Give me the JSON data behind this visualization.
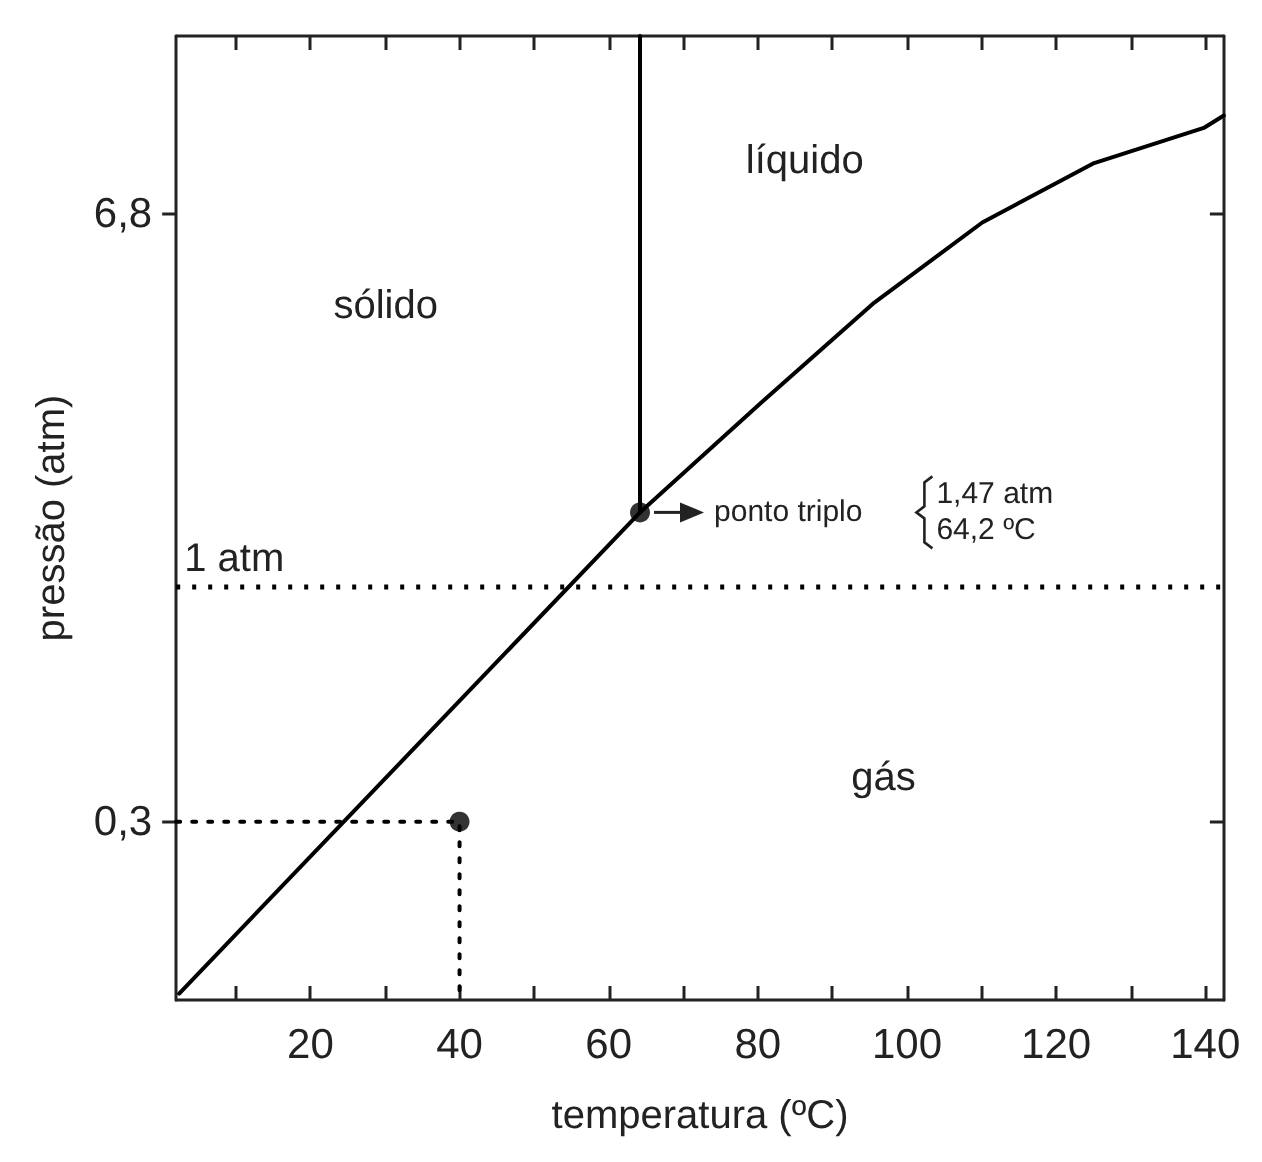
{
  "chart_data": {
    "type": "line",
    "xlabel": "temperatura (ºC)",
    "ylabel": "pressão (atm)",
    "log": "y",
    "xlim": [
      2,
      142.5
    ],
    "ylim": [
      0.12,
      17
    ],
    "xticks": [
      {
        "value": 10,
        "label": null
      },
      20,
      {
        "value": 30,
        "label": null
      },
      40,
      {
        "value": 50,
        "label": null
      },
      60,
      {
        "value": 70,
        "label": null
      },
      80,
      {
        "value": 90,
        "label": null
      },
      100,
      {
        "value": 110,
        "label": null
      },
      120,
      {
        "value": 130,
        "label": null
      },
      140
    ],
    "yticks": [
      {
        "value": 0.3,
        "label": "0,3"
      },
      {
        "value": 6.8,
        "label": "6,8"
      }
    ],
    "grid": false,
    "ref_lines": [
      {
        "axis": "y",
        "value": 1,
        "label": "1 atm",
        "line_style": "dotted",
        "color": "#000000"
      }
    ],
    "series": [
      {
        "color": "#000000",
        "x": [
          2.4,
          64.2
        ],
        "values": [
          0.124,
          1.47
        ]
      },
      {
        "color": "#000000",
        "x": [
          64.2,
          64.2
        ],
        "values": [
          1.47,
          17
        ]
      },
      {
        "color": "#000000",
        "x": [
          64.2,
          80.4,
          95.4,
          110.1,
          125.1,
          139.8,
          142.5
        ],
        "values": [
          1.47,
          2.58,
          4.29,
          6.52,
          8.85,
          10.6,
          11.3
        ]
      },
      {
        "color": "#000000",
        "line_style": "dotted",
        "x": [
          2,
          40,
          40
        ],
        "values": [
          0.3,
          0.3,
          0.12
        ]
      },
      {
        "type": "scatter",
        "color": "#000000",
        "marker": "circle",
        "x": [
          40
        ],
        "values": [
          0.3
        ]
      },
      {
        "type": "scatter",
        "color": "#000000",
        "marker": "circle",
        "x": [
          64.2
        ],
        "values": [
          1.47
        ]
      }
    ],
    "annotations": [
      "sólido",
      "líquido",
      "gás",
      {
        "text": "ponto triplo",
        "x": 64.2,
        "y": 1.47
      },
      "1,47 atm",
      "64,2 ºC"
    ]
  }
}
